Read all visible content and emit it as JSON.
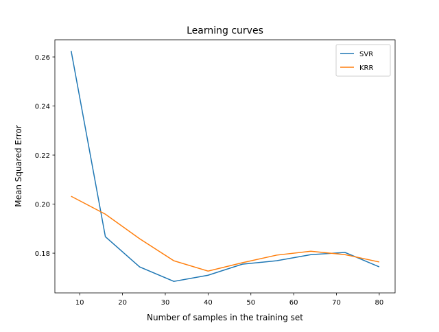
{
  "chart_data": {
    "type": "line",
    "title": "Learning curves",
    "xlabel": "Number of samples in the training set",
    "ylabel": "Mean Squared Error",
    "xlim": [
      4.2,
      83.7
    ],
    "ylim": [
      0.1638,
      0.267
    ],
    "xticks": [
      10,
      20,
      30,
      40,
      50,
      60,
      70,
      80
    ],
    "yticks": [
      0.18,
      0.2,
      0.22,
      0.24,
      0.26
    ],
    "ytick_labels": [
      "0.18",
      "0.20",
      "0.22",
      "0.24",
      "0.26"
    ],
    "grid": false,
    "legend_placement": "top-right",
    "x": [
      8,
      16,
      24,
      32,
      40,
      48,
      56,
      64,
      72,
      80
    ],
    "series": [
      {
        "name": "SVR",
        "color": "#1f77b4",
        "values": [
          0.2625,
          0.1867,
          0.1744,
          0.1685,
          0.171,
          0.1755,
          0.1769,
          0.1794,
          0.1803,
          0.1744
        ]
      },
      {
        "name": "KRR",
        "color": "#ff7f0e",
        "values": [
          0.2032,
          0.1959,
          0.1859,
          0.1769,
          0.1727,
          0.1761,
          0.1792,
          0.1808,
          0.1794,
          0.1764
        ]
      }
    ]
  }
}
